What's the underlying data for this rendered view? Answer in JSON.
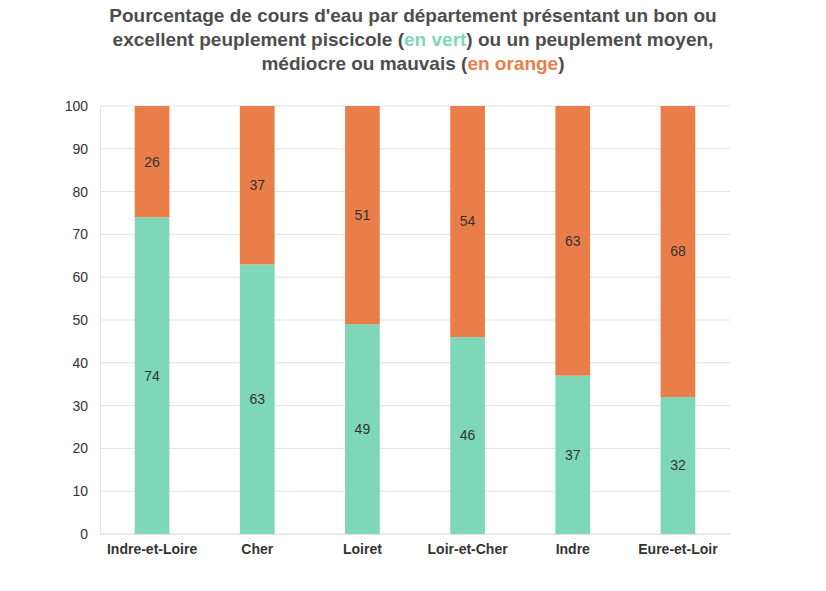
{
  "chart_data": {
    "type": "bar",
    "title": "Pourcentage de cours d'eau par département présentant un bon ou excellent peuplement piscicole (en vert) ou un peuplement moyen, médiocre ou mauvais (en orange)",
    "categories": [
      "Indre-et-Loire",
      "Cher",
      "Loiret",
      "Loir-et-Cher",
      "Indre",
      "Eure-et-Loir"
    ],
    "series": [
      {
        "name": "en vert",
        "color": "#7fd7b9",
        "values": [
          74,
          63,
          49,
          46,
          37,
          32
        ]
      },
      {
        "name": "en orange",
        "color": "#ea7e4a",
        "values": [
          26,
          37,
          51,
          54,
          63,
          68
        ]
      }
    ],
    "stacked": true,
    "data_labels": true,
    "ylim": [
      0,
      100
    ],
    "yticks": [
      0,
      10,
      20,
      30,
      40,
      50,
      60,
      70,
      80,
      90,
      100
    ],
    "grid": true
  }
}
